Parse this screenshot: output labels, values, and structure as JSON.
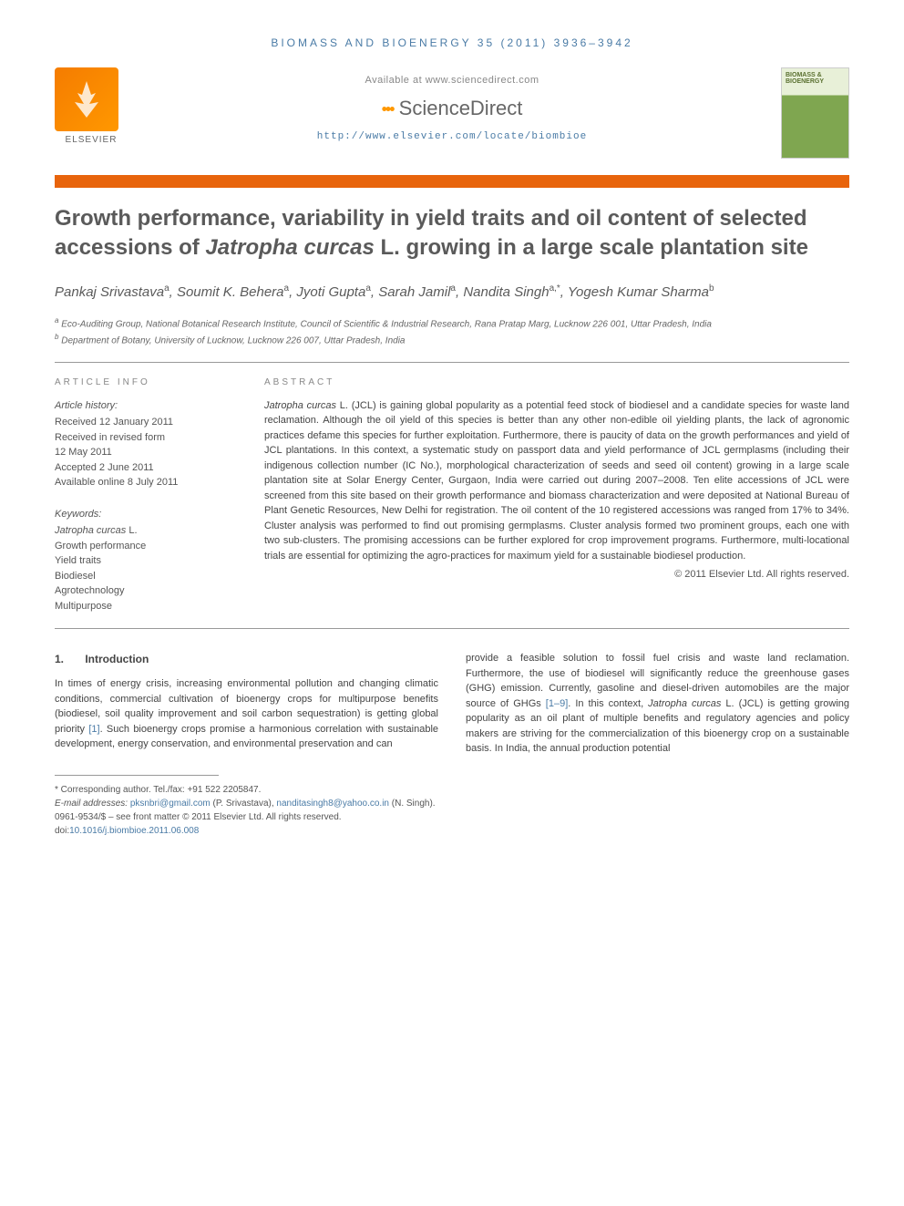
{
  "journal_header": "BIOMASS AND BIOENERGY 35 (2011) 3936–3942",
  "banner": {
    "elsevier_label": "ELSEVIER",
    "available_text": "Available at www.sciencedirect.com",
    "sd_brand": "ScienceDirect",
    "journal_url": "http://www.elsevier.com/locate/biombioe",
    "cover_text": "BIOMASS & BIOENERGY"
  },
  "title_parts": {
    "pre": "Growth performance, variability in yield traits and oil content of selected accessions of ",
    "italic": "Jatropha curcas",
    "post": " L. growing in a large scale plantation site"
  },
  "authors_html": "Pankaj Srivastava<sup>a</sup>, Soumit K. Behera<sup>a</sup>, Jyoti Gupta<sup>a</sup>, Sarah Jamil<sup>a</sup>, Nandita Singh<sup>a,*</sup>, Yogesh Kumar Sharma<sup>b</sup>",
  "affiliations": [
    {
      "sup": "a",
      "text": "Eco-Auditing Group, National Botanical Research Institute, Council of Scientific & Industrial Research, Rana Pratap Marg, Lucknow 226 001, Uttar Pradesh, India"
    },
    {
      "sup": "b",
      "text": "Department of Botany, University of Lucknow, Lucknow 226 007, Uttar Pradesh, India"
    }
  ],
  "article_info": {
    "heading": "ARTICLE INFO",
    "history_label": "Article history:",
    "history": [
      "Received 12 January 2011",
      "Received in revised form",
      "12 May 2011",
      "Accepted 2 June 2011",
      "Available online 8 July 2011"
    ],
    "keywords_label": "Keywords:",
    "keywords": [
      "Jatropha curcas L.",
      "Growth performance",
      "Yield traits",
      "Biodiesel",
      "Agrotechnology",
      "Multipurpose"
    ]
  },
  "abstract": {
    "heading": "ABSTRACT",
    "body_parts": {
      "p1a": "Jatropha curcas",
      "p1b": " L. (JCL) is gaining global popularity as a potential feed stock of biodiesel and a candidate species for waste land reclamation. Although the oil yield of this species is better than any other non-edible oil yielding plants, the lack of agronomic practices defame this species for further exploitation. Furthermore, there is paucity of data on the growth performances and yield of JCL plantations. In this context, a systematic study on passport data and yield performance of JCL germplasms (including their indigenous collection number (IC No.), morphological characterization of seeds and seed oil content) growing in a large scale plantation site at Solar Energy Center, Gurgaon, India were carried out during 2007–2008. Ten elite accessions of JCL were screened from this site based on their growth performance and biomass characterization and were deposited at National Bureau of Plant Genetic Resources, New Delhi for registration. The oil content of the 10 registered accessions was ranged from 17% to 34%. Cluster analysis was performed to find out promising germplasms. Cluster analysis formed two prominent groups, each one with two sub-clusters. The promising accessions can be further explored for crop improvement programs. Furthermore, multi-locational trials are essential for optimizing the agro-practices for maximum yield for a sustainable biodiesel production."
    },
    "copyright": "© 2011 Elsevier Ltd. All rights reserved."
  },
  "body": {
    "section_num": "1.",
    "section_title": "Introduction",
    "col1": "In times of energy crisis, increasing environmental pollution and changing climatic conditions, commercial cultivation of bioenergy crops for multipurpose benefits (biodiesel, soil quality improvement and soil carbon sequestration) is getting global priority ",
    "col1_ref": "[1]",
    "col1_b": ". Such bioenergy crops promise a harmonious correlation with sustainable development, energy conservation, and environmental preservation and can",
    "col2_a": "provide a feasible solution to fossil fuel crisis and waste land reclamation. Furthermore, the use of biodiesel will significantly reduce the greenhouse gases (GHG) emission. Currently, gasoline and diesel-driven automobiles are the major source of GHGs ",
    "col2_ref": "[1–9]",
    "col2_b": ". In this context, ",
    "col2_italic": "Jatropha curcas",
    "col2_c": " L. (JCL) is getting growing popularity as an oil plant of multiple benefits and regulatory agencies and policy makers are striving for the commercialization of this bioenergy crop on a sustainable basis. In India, the annual production potential"
  },
  "footer": {
    "corresponding": "* Corresponding author. Tel./fax: +91 522 2205847.",
    "email_label": "E-mail addresses: ",
    "email1": "pksnbri@gmail.com",
    "email1_who": " (P. Srivastava), ",
    "email2": "nanditasingh8@yahoo.co.in",
    "email2_who": " (N. Singh).",
    "issn": "0961-9534/$ – see front matter © 2011 Elsevier Ltd. All rights reserved.",
    "doi_label": "doi:",
    "doi": "10.1016/j.biombioe.2011.06.008"
  },
  "colors": {
    "orange_bar": "#e8640c",
    "link": "#4a7ba6",
    "title_gray": "#5a5a5a"
  }
}
